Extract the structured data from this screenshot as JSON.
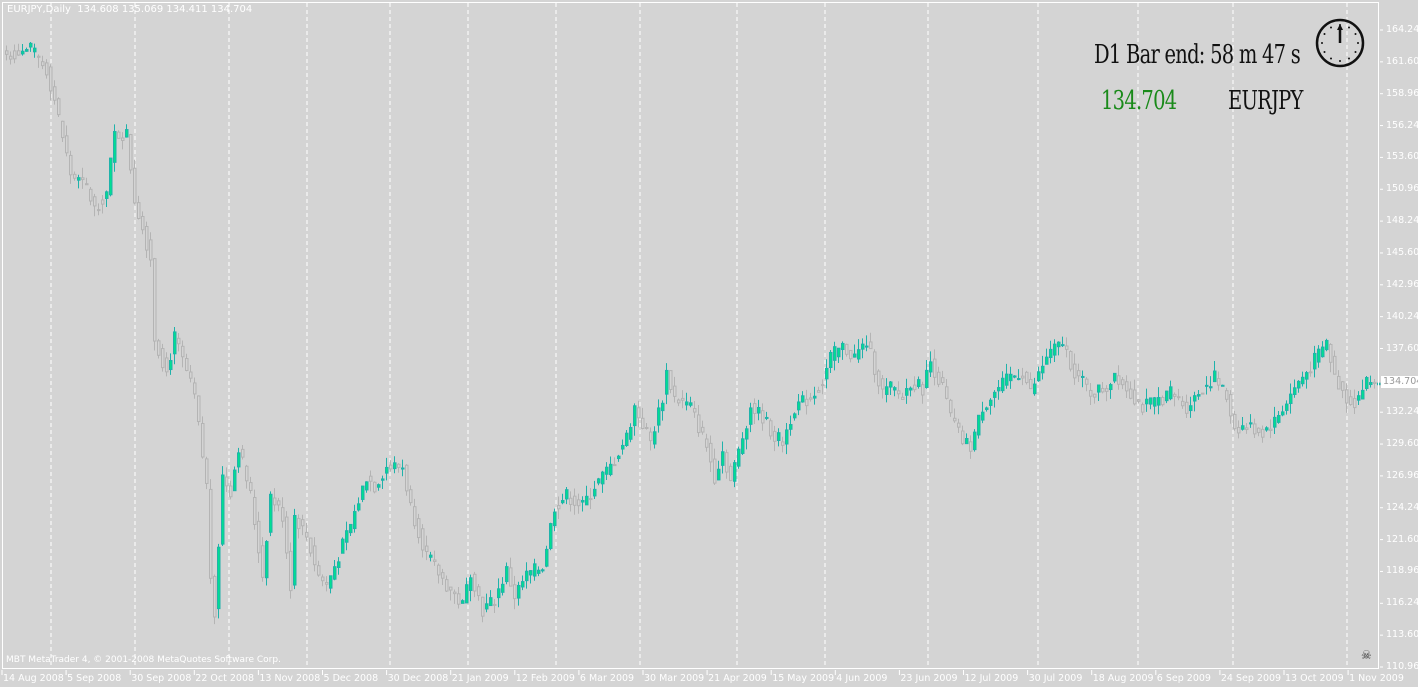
{
  "header": {
    "symbol": "EURJPY,Daily",
    "ohlc": "134.608 135.069 134.411 134.704"
  },
  "copyright": "MBT MetaTrader 4, © 2001-2008 MetaQuotes Software Corp.",
  "indicator": {
    "bar_end": "D1 Bar end: 58 m 47 s",
    "price": "134.704",
    "symbol": "EURJPY",
    "price_color": "#1a8a1a"
  },
  "price_tag": "134.704",
  "colors": {
    "background": "#d4d4d4",
    "bull_border": "#20b2aa",
    "bull_fill": "#00e090",
    "bear": "#b4b4b4",
    "grid": "#ffffff"
  },
  "chart_data": {
    "type": "candlestick",
    "title": "EURJPY,Daily",
    "ylim": [
      110.96,
      164.24
    ],
    "y_ticks": [
      "164.240",
      "161.600",
      "158.960",
      "156.240",
      "153.600",
      "150.960",
      "148.240",
      "145.600",
      "142.960",
      "140.240",
      "137.600",
      "134.704",
      "132.240",
      "129.600",
      "126.960",
      "124.240",
      "121.600",
      "118.960",
      "116.240",
      "113.600",
      "110.960"
    ],
    "x_ticks": [
      "14 Aug 2008",
      "5 Sep 2008",
      "30 Sep 2008",
      "22 Oct 2008",
      "13 Nov 2008",
      "5 Dec 2008",
      "30 Dec 2008",
      "21 Jan 2009",
      "12 Feb 2009",
      "6 Mar 2009",
      "30 Mar 2009",
      "21 Apr 2009",
      "15 May 2009",
      "4 Jun 2009",
      "23 Jun 2009",
      "12 Jul 2009",
      "30 Jul 2009",
      "18 Aug 2009",
      "6 Sep 2009",
      "24 Sep 2009",
      "13 Oct 2009",
      "1 Nov 2009"
    ],
    "close_samples": [
      [
        0,
        162.2
      ],
      [
        6,
        162.6
      ],
      [
        10,
        160.9
      ],
      [
        12,
        158.4
      ],
      [
        16,
        152.2
      ],
      [
        20,
        151
      ],
      [
        22,
        149.3
      ],
      [
        25,
        150.6
      ],
      [
        27,
        155.5
      ],
      [
        30,
        155.5
      ],
      [
        32,
        150.1
      ],
      [
        36,
        145.2
      ],
      [
        37,
        138.5
      ],
      [
        40,
        135.6
      ],
      [
        42,
        138.5
      ],
      [
        45,
        135.6
      ],
      [
        47,
        133.5
      ],
      [
        50,
        126.1
      ],
      [
        51,
        118.6
      ],
      [
        52,
        115.7
      ],
      [
        54,
        126.9
      ],
      [
        56,
        125.7
      ],
      [
        58,
        129.4
      ],
      [
        61,
        125.3
      ],
      [
        64,
        118.6
      ],
      [
        66,
        125.3
      ],
      [
        69,
        123.6
      ],
      [
        71,
        117.8
      ],
      [
        72,
        123.6
      ],
      [
        75,
        121.9
      ],
      [
        78,
        118.6
      ],
      [
        80,
        117.8
      ],
      [
        82,
        119.4
      ],
      [
        86,
        122.8
      ],
      [
        90,
        126.9
      ],
      [
        92,
        126.1
      ],
      [
        95,
        127.7
      ],
      [
        99,
        127.7
      ],
      [
        101,
        124.4
      ],
      [
        105,
        120.3
      ],
      [
        110,
        117.8
      ],
      [
        114,
        116.1
      ],
      [
        116,
        119
      ],
      [
        119,
        115.7
      ],
      [
        122,
        116.6
      ],
      [
        125,
        119
      ],
      [
        127,
        116.9
      ],
      [
        130,
        118.6
      ],
      [
        134,
        119.4
      ],
      [
        137,
        124.4
      ],
      [
        140,
        125.3
      ],
      [
        144,
        124.4
      ],
      [
        147,
        126.1
      ],
      [
        151,
        127.7
      ],
      [
        155,
        130.2
      ],
      [
        157,
        132.7
      ],
      [
        161,
        129.8
      ],
      [
        164,
        133.5
      ],
      [
        165,
        135.6
      ],
      [
        167,
        133.5
      ],
      [
        171,
        132.7
      ],
      [
        175,
        129.4
      ],
      [
        177,
        126.9
      ],
      [
        179,
        129
      ],
      [
        181,
        126.5
      ],
      [
        184,
        130.2
      ],
      [
        186,
        132.7
      ],
      [
        189,
        131.9
      ],
      [
        192,
        130.2
      ],
      [
        194,
        129.8
      ],
      [
        197,
        132.7
      ],
      [
        201,
        133.5
      ],
      [
        204,
        134.8
      ],
      [
        206,
        136.9
      ],
      [
        209,
        137.7
      ],
      [
        212,
        136.9
      ],
      [
        215,
        138.1
      ],
      [
        219,
        133.9
      ],
      [
        221,
        134.3
      ],
      [
        224,
        133.5
      ],
      [
        226,
        134.8
      ],
      [
        229,
        134.3
      ],
      [
        231,
        136.5
      ],
      [
        234,
        134.3
      ],
      [
        236,
        131.9
      ],
      [
        239,
        129.8
      ],
      [
        241,
        129.4
      ],
      [
        244,
        132.7
      ],
      [
        247,
        133.9
      ],
      [
        251,
        135.2
      ],
      [
        254,
        135.6
      ],
      [
        256,
        133.9
      ],
      [
        260,
        136.9
      ],
      [
        264,
        138.1
      ],
      [
        267,
        135.6
      ],
      [
        271,
        133.9
      ],
      [
        275,
        134.3
      ],
      [
        277,
        135.6
      ],
      [
        280,
        134.3
      ],
      [
        284,
        132.7
      ],
      [
        287,
        133.1
      ],
      [
        291,
        133.9
      ],
      [
        295,
        132.7
      ],
      [
        299,
        134.3
      ],
      [
        302,
        135.2
      ],
      [
        305,
        133.5
      ],
      [
        307,
        131
      ],
      [
        311,
        131
      ],
      [
        314,
        130.6
      ],
      [
        317,
        131.5
      ],
      [
        320,
        133.1
      ],
      [
        322,
        134.3
      ],
      [
        325,
        135.6
      ],
      [
        330,
        138.1
      ],
      [
        332,
        135.2
      ],
      [
        335,
        133.5
      ],
      [
        337,
        133.1
      ],
      [
        340,
        134.8
      ],
      [
        343,
        134.7
      ]
    ]
  }
}
